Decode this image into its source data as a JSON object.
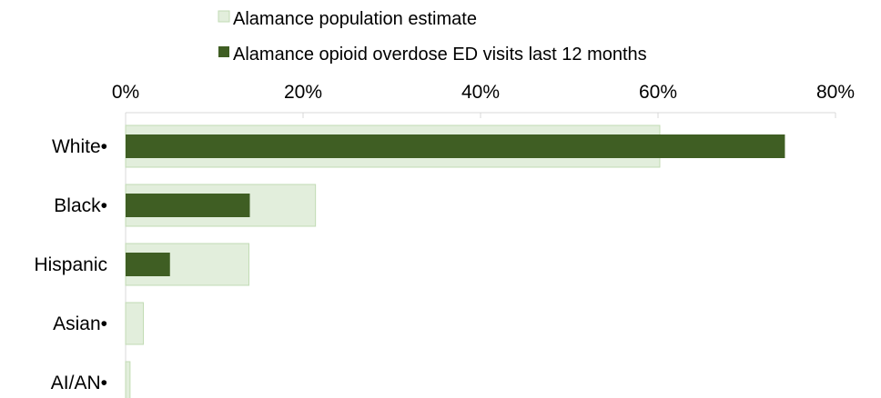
{
  "chart_data": {
    "type": "bar",
    "orientation": "horizontal",
    "categories": [
      "White•",
      "Black•",
      "Hispanic",
      "Asian•",
      "AI/AN•"
    ],
    "series": [
      {
        "name": "Alamance population estimate",
        "values": [
          60.2,
          21.4,
          13.9,
          2.0,
          0.5
        ],
        "color": "#e2eedc",
        "stroke": "#c2dbb4"
      },
      {
        "name": "Alamance opioid overdose ED visits last 12 months",
        "values": [
          74.3,
          14.0,
          5.0,
          0,
          0
        ],
        "color": "#3f5e23",
        "stroke": "#3f5e23"
      }
    ],
    "xlim": [
      0,
      80
    ],
    "ticks": [
      0,
      20,
      40,
      60,
      80
    ],
    "tick_labels": [
      "0%",
      "20%",
      "40%",
      "60%",
      "80%"
    ],
    "axis_position": "top",
    "legend_position": "top",
    "grid": false,
    "title": "",
    "xlabel": "",
    "ylabel": ""
  }
}
